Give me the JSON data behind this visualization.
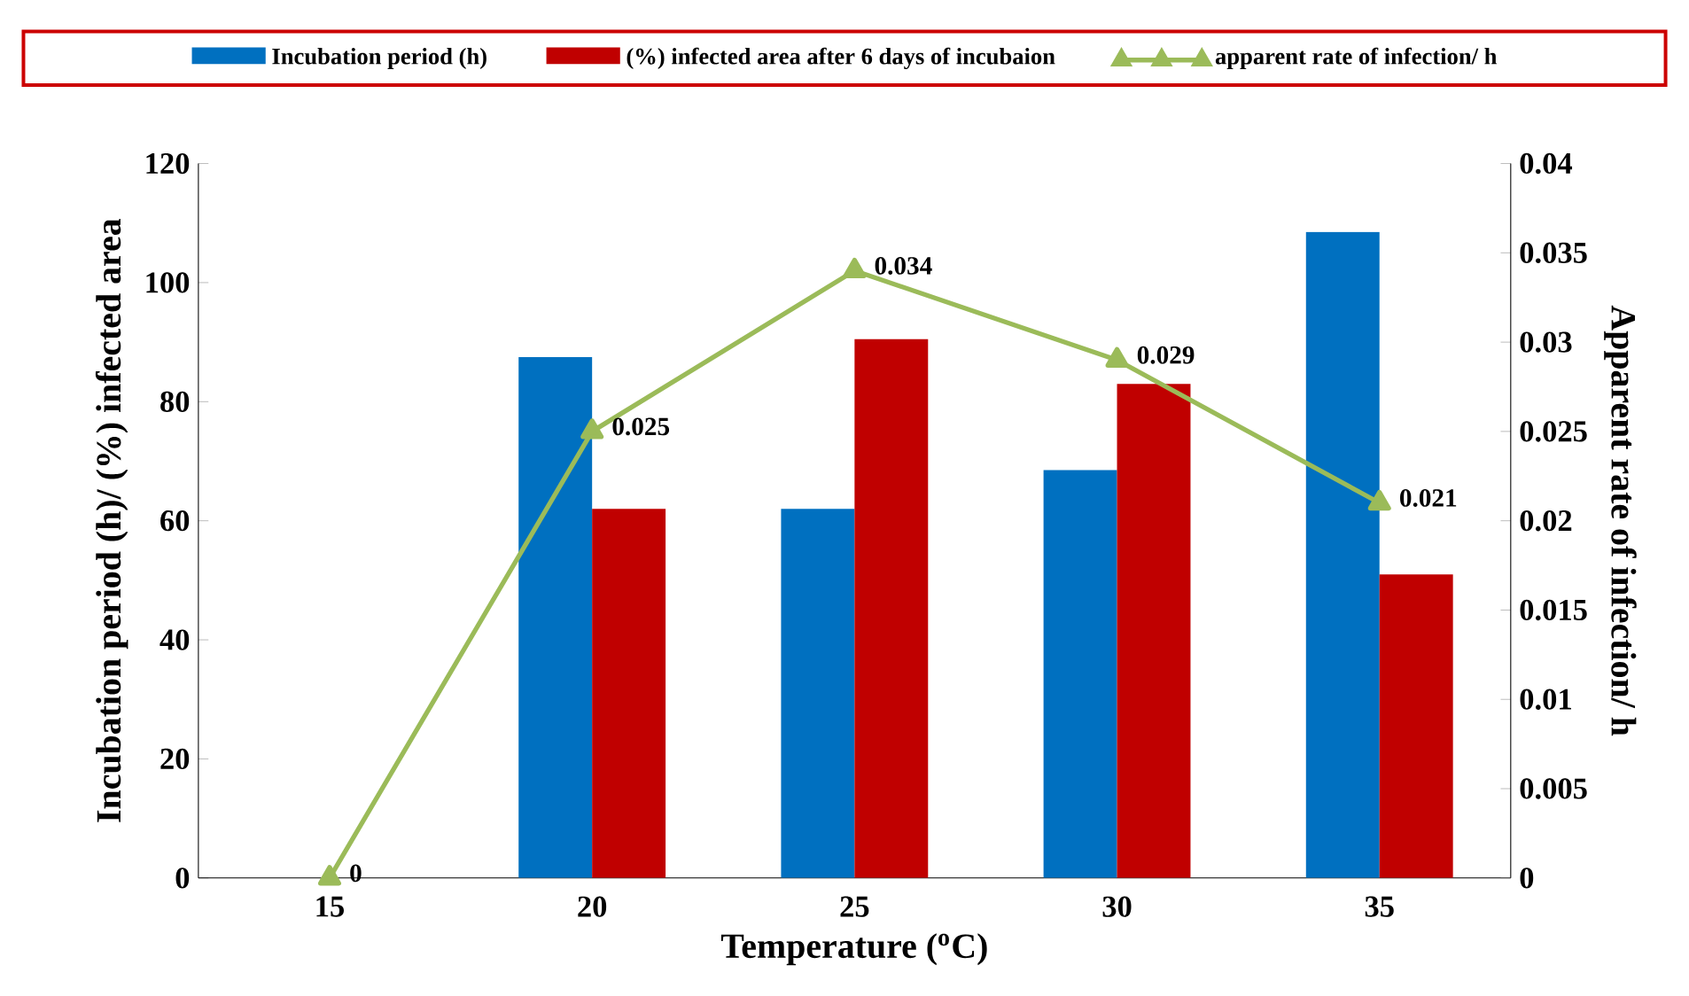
{
  "chart_data": {
    "type": "bar",
    "categories": [
      "15",
      "20",
      "25",
      "30",
      "35"
    ],
    "xlabel": "Temperature ($^{o}$C)",
    "ylabel": "Incubation period (h)/ (%) infected area",
    "y2label": "Apparent rate of infection/ h",
    "series": [
      {
        "name": "Incubation period (h)",
        "color": "#0070c0",
        "values": [
          null,
          87.5,
          62,
          68.5,
          108.5
        ]
      },
      {
        "name": "(%) infected area after 6 days of incubaion",
        "color": "#c00000",
        "values": [
          null,
          62,
          90.5,
          83,
          51
        ]
      },
      {
        "name": "apparent rate of infection/ h",
        "type": "line",
        "axis": "y2",
        "color": "#9bbb59",
        "marker": "triangle",
        "data_labels": true,
        "values": [
          0,
          0.025,
          0.034,
          0.029,
          0.021
        ]
      }
    ],
    "ylim": [
      0,
      120
    ],
    "yticks": [
      0,
      20,
      40,
      60,
      80,
      100,
      120
    ],
    "y2lim": [
      0,
      0.04
    ],
    "y2ticks": [
      0,
      0.005,
      0.01,
      0.015,
      0.02,
      0.025,
      0.03,
      0.035,
      0.04
    ],
    "legend": "top"
  }
}
